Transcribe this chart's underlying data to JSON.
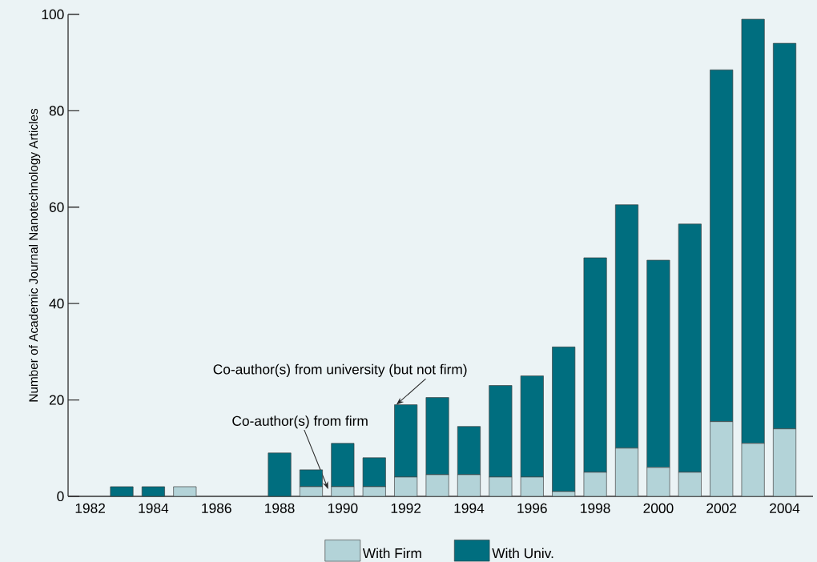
{
  "chart_data": {
    "type": "bar",
    "stacked": true,
    "ylabel": "Number of Academic Journal Nanotechnology Articles",
    "categories": [
      "1982",
      null,
      "1984",
      null,
      "1986",
      null,
      "1988",
      null,
      "1990",
      null,
      "1992",
      null,
      "1994",
      null,
      "1996",
      null,
      "1998",
      null,
      "2000",
      null,
      "2002",
      null,
      "2004"
    ],
    "series": [
      {
        "name": "With Firm",
        "color": "#b3d3d8",
        "values": [
          0,
          0,
          0,
          2,
          0,
          0,
          0,
          2,
          2,
          2,
          4,
          4.5,
          4.5,
          4,
          4,
          1,
          5,
          10,
          6,
          5,
          15.5,
          11,
          14
        ]
      },
      {
        "name": "With Univ.",
        "color": "#006e7f",
        "values": [
          0,
          2,
          2,
          0,
          0,
          0,
          9,
          3.5,
          9,
          6,
          15,
          16,
          10,
          19,
          21,
          30,
          44.5,
          50.5,
          43,
          51.5,
          73,
          88,
          80
        ]
      }
    ],
    "ylim": [
      0,
      100
    ],
    "yticks": [
      0,
      20,
      40,
      60,
      80,
      100
    ],
    "grid": false,
    "legend": "bottom",
    "annotations": [
      {
        "text": "Co-author(s) from university (but not firm)",
        "x": "1992",
        "y": 19
      },
      "Co-author(s) from firm"
    ]
  }
}
